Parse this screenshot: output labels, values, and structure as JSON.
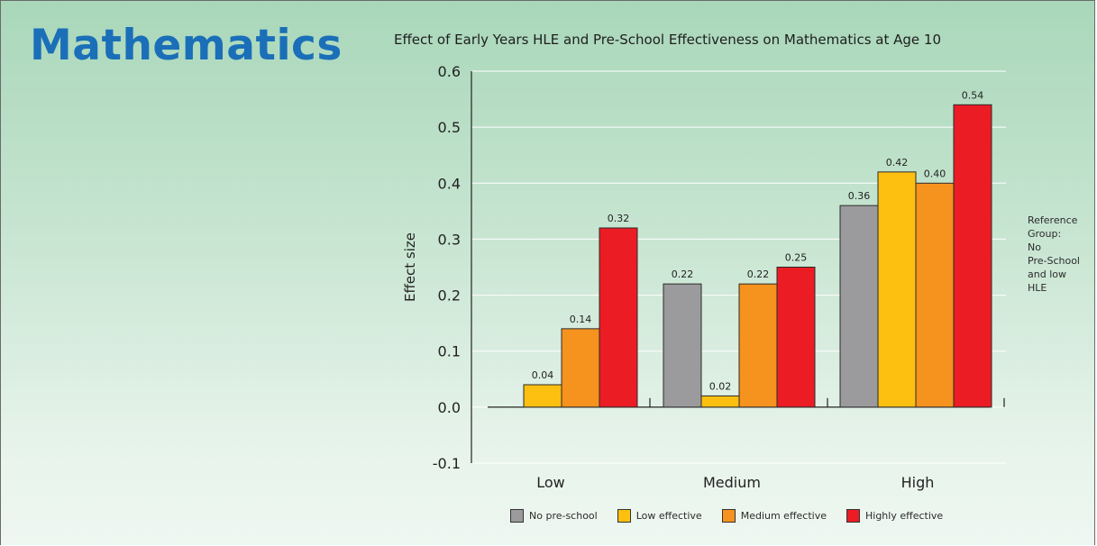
{
  "heading": "Mathematics",
  "reference_note": [
    "Reference",
    "Group:",
    "No",
    "Pre-School",
    "and low",
    "HLE"
  ],
  "colors": {
    "No pre-school": "#9b9b9d",
    "Low effective": "#fdc010",
    "Medium effective": "#f6921e",
    "Highly effective": "#ec1c24"
  },
  "chart_data": {
    "type": "bar",
    "title": "Effect of Early Years HLE and Pre-School Effectiveness on Mathematics at Age 10",
    "ylabel": "Effect size",
    "xlabel": "",
    "ylim": [
      -0.1,
      0.6
    ],
    "yticks": [
      "0.6",
      "0.5",
      "0.4",
      "0.3",
      "0.2",
      "0.1",
      "0.0",
      "-0.1"
    ],
    "ytick_values": [
      0.6,
      0.5,
      0.4,
      0.3,
      0.2,
      0.1,
      0.0,
      -0.1
    ],
    "categories": [
      "Low",
      "Medium",
      "High"
    ],
    "grid": true,
    "legend_position": "bottom",
    "series": [
      {
        "name": "No pre-school",
        "values": [
          0.0,
          0.22,
          0.36
        ],
        "labels": [
          "",
          "0.22",
          "0.36"
        ]
      },
      {
        "name": "Low effective",
        "values": [
          0.04,
          0.02,
          0.42
        ],
        "labels": [
          "0.04",
          "0.02",
          "0.42"
        ]
      },
      {
        "name": "Medium effective",
        "values": [
          0.14,
          0.22,
          0.4
        ],
        "labels": [
          "0.14",
          "0.22",
          "0.40"
        ]
      },
      {
        "name": "Highly effective",
        "values": [
          0.32,
          0.25,
          0.54
        ],
        "labels": [
          "0.32",
          "0.25",
          "0.54"
        ]
      }
    ]
  }
}
